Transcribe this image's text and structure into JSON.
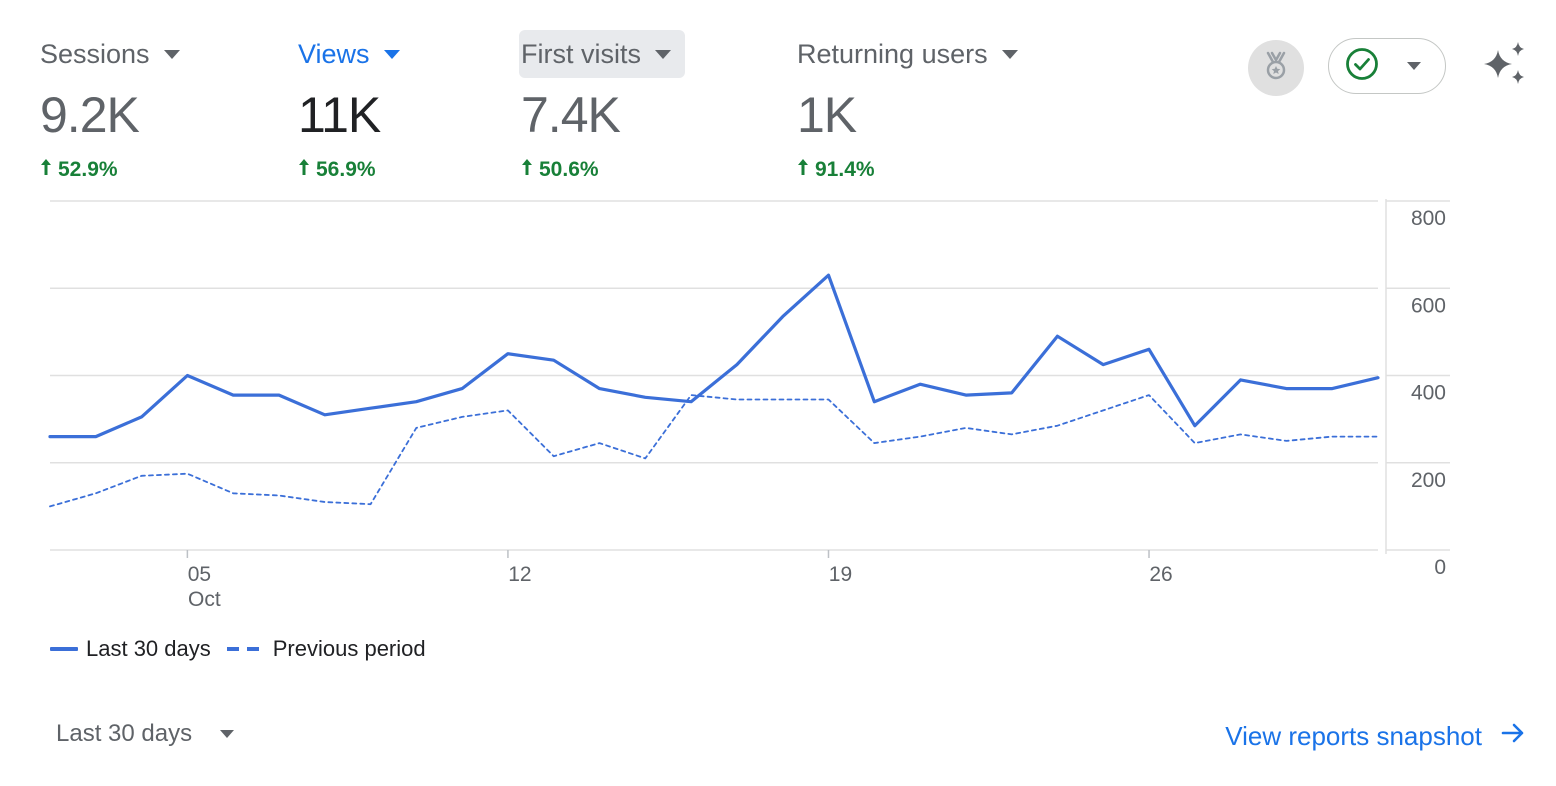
{
  "metrics": [
    {
      "label": "Sessions",
      "value": "9.2K",
      "change": "52.9%",
      "state": "normal"
    },
    {
      "label": "Views",
      "value": "11K",
      "change": "56.9%",
      "state": "active"
    },
    {
      "label": "First visits",
      "value": "7.4K",
      "change": "50.6%",
      "state": "hover"
    },
    {
      "label": "Returning users",
      "value": "1K",
      "change": "91.4%",
      "state": "normal"
    }
  ],
  "toolbar": {
    "award_icon": "award-medal-icon",
    "status_icon": "check-circle-icon",
    "insights_icon": "sparkle-icon"
  },
  "colors": {
    "accent": "#1a73e8",
    "series": "#3b6fd8",
    "positive": "#188038",
    "grid": "#e0e0e0"
  },
  "chart_data": {
    "type": "line",
    "y_ticks": [
      "800",
      "600",
      "400",
      "200",
      "0"
    ],
    "ylim": [
      0,
      800
    ],
    "x_tick_labels": [
      {
        "day": 5,
        "label": "05",
        "sublabel": "Oct"
      },
      {
        "day": 12,
        "label": "12",
        "sublabel": ""
      },
      {
        "day": 19,
        "label": "19",
        "sublabel": ""
      },
      {
        "day": 26,
        "label": "26",
        "sublabel": ""
      }
    ],
    "x_days": [
      2,
      3,
      4,
      5,
      6,
      7,
      8,
      9,
      10,
      11,
      12,
      13,
      14,
      15,
      16,
      17,
      18,
      19,
      20,
      21,
      22,
      23,
      24,
      25,
      26,
      27,
      28,
      29,
      30,
      31
    ],
    "series": [
      {
        "name": "Last 30 days",
        "style": "solid",
        "values": [
          260,
          260,
          305,
          400,
          355,
          355,
          310,
          325,
          340,
          370,
          450,
          435,
          370,
          350,
          340,
          425,
          535,
          630,
          340,
          380,
          355,
          360,
          490,
          425,
          460,
          285,
          390,
          370,
          370,
          395
        ]
      },
      {
        "name": "Previous period",
        "style": "dashed",
        "values": [
          100,
          130,
          170,
          175,
          130,
          125,
          110,
          105,
          280,
          305,
          320,
          215,
          245,
          210,
          355,
          345,
          345,
          345,
          245,
          260,
          280,
          265,
          285,
          320,
          355,
          245,
          265,
          250,
          260,
          260
        ]
      }
    ],
    "grid": true,
    "legend_position": "bottom-left"
  },
  "footer": {
    "date_range_label": "Last 30 days",
    "snapshot_link": "View reports snapshot"
  }
}
